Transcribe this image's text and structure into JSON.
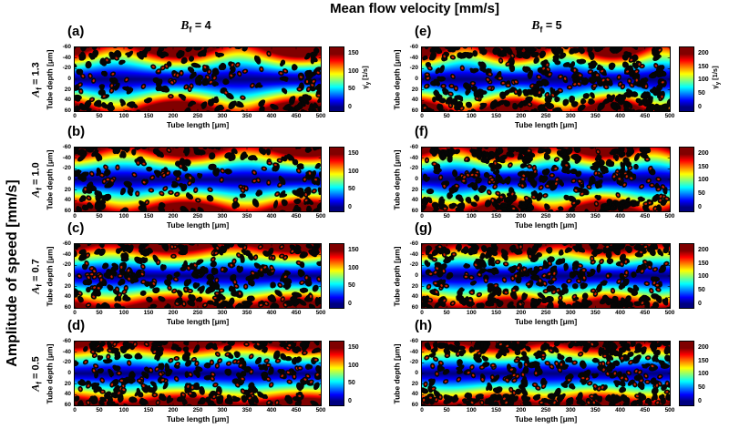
{
  "title": "Mean flow velocity [mm/s]",
  "left_axis_title": "Amplitude of speed [mm/s]",
  "column_headers": [
    {
      "var": "B",
      "sub": "f",
      "eq": " = 4"
    },
    {
      "var": "B",
      "sub": "f",
      "eq": " = 5"
    }
  ],
  "row_labels": [
    {
      "var": "A",
      "sub": "f",
      "eq": " = 1.3"
    },
    {
      "var": "A",
      "sub": "f",
      "eq": " = 1.0"
    },
    {
      "var": "A",
      "sub": "f",
      "eq": " = 0.7"
    },
    {
      "var": "A",
      "sub": "f",
      "eq": " = 0.5"
    }
  ],
  "axes": {
    "x_label": "Tube length [μm]",
    "y_label": "Tube depth [μm]",
    "x_ticks": [
      0,
      50,
      100,
      150,
      200,
      250,
      300,
      350,
      400,
      450,
      500
    ],
    "y_ticks": [
      -60,
      -40,
      -20,
      0,
      20,
      40,
      60
    ]
  },
  "colorbar": {
    "sym": "γ̇",
    "sub": "y",
    "unit": " [1/s]"
  },
  "chart_data": {
    "type": "heatmap",
    "title": "Mean flow velocity [mm/s]",
    "x_label": "Tube length [μm]",
    "y_label": "Tube depth [μm]",
    "x_range": [
      0,
      500
    ],
    "y_range": [
      -60,
      60
    ],
    "y_axis_reversed": true,
    "colormap": "jet",
    "colorbar_label": "γ̇y [1/s]",
    "grid": false,
    "legend": "none",
    "description": "Shear rate field in a tube: low (dark blue) along centerline, high (dark red) at walls, modulated along tube length; black red-blood-cell aggregates and red-cored cells overlaid",
    "panels": [
      {
        "letter": "(a)",
        "row": 0,
        "col": 0,
        "A_f": 1.3,
        "B_f": 4,
        "cbar_ticks": [
          0,
          50,
          100,
          150
        ],
        "cbar_label": true,
        "heat": {
          "waves": 2,
          "amp": 0.3,
          "phase": 2.6,
          "exp": 1.25,
          "gain": 1.18
        },
        "particles": {
          "seed": 11,
          "blobs": 175,
          "cells": 55,
          "cluster_prob": 0.72,
          "wall_prob": 0.5,
          "cell_sy": 12,
          "clusters": [
            [
              0.09,
              0.45,
              0.1,
              0.45
            ],
            [
              0.55,
              0.4,
              0.09,
              0.4
            ],
            [
              0.96,
              0.7,
              0.07,
              0.25
            ]
          ]
        }
      },
      {
        "letter": "(b)",
        "row": 1,
        "col": 0,
        "A_f": 1.0,
        "B_f": 4,
        "cbar_ticks": [
          0,
          50,
          100,
          150
        ],
        "cbar_label": false,
        "heat": {
          "waves": 2,
          "amp": 0.24,
          "phase": 2.2,
          "exp": 1.25,
          "gain": 1.18
        },
        "particles": {
          "seed": 22,
          "blobs": 165,
          "cells": 60,
          "cluster_prob": 0.65,
          "wall_prob": 0.45,
          "cell_sy": 13,
          "clusters": [
            [
              0.07,
              0.45,
              0.09,
              0.42
            ],
            [
              0.47,
              0.42,
              0.1,
              0.4
            ],
            [
              0.97,
              0.5,
              0.06,
              0.4
            ]
          ]
        }
      },
      {
        "letter": "(c)",
        "row": 2,
        "col": 0,
        "A_f": 0.7,
        "B_f": 4,
        "cbar_ticks": [
          0,
          50,
          100,
          150
        ],
        "cbar_label": false,
        "heat": {
          "waves": 2,
          "amp": 0.18,
          "phase": 2.9,
          "exp": 1.25,
          "gain": 1.18
        },
        "particles": {
          "seed": 33,
          "blobs": 205,
          "cells": 90,
          "cluster_prob": 0.35,
          "wall_prob": 0.35,
          "cell_sy": 18,
          "clusters": [
            [
              0.15,
              0.5,
              0.12,
              0.45
            ],
            [
              0.55,
              0.5,
              0.12,
              0.45
            ]
          ]
        }
      },
      {
        "letter": "(d)",
        "row": 3,
        "col": 0,
        "A_f": 0.5,
        "B_f": 4,
        "cbar_ticks": [
          0,
          50,
          100,
          150
        ],
        "cbar_label": false,
        "heat": {
          "waves": 2,
          "amp": 0.14,
          "phase": 2.4,
          "exp": 1.25,
          "gain": 1.18
        },
        "particles": {
          "seed": 44,
          "blobs": 215,
          "cells": 95,
          "cluster_prob": 0.25,
          "wall_prob": 0.35,
          "cell_sy": 20,
          "clusters": [
            [
              0.3,
              0.5,
              0.15,
              0.45
            ],
            [
              0.75,
              0.5,
              0.15,
              0.45
            ]
          ]
        }
      },
      {
        "letter": "(e)",
        "row": 0,
        "col": 1,
        "A_f": 1.3,
        "B_f": 5,
        "cbar_ticks": [
          0,
          50,
          100,
          150,
          200
        ],
        "cbar_label": true,
        "heat": {
          "waves": 2.5,
          "amp": 0.3,
          "phase": 2.0,
          "exp": 1.25,
          "gain": 1.18
        },
        "particles": {
          "seed": 55,
          "blobs": 265,
          "cells": 80,
          "cluster_prob": 0.5,
          "wall_prob": 0.45,
          "cell_sy": 13,
          "clusters": [
            [
              0.15,
              0.5,
              0.13,
              0.45
            ],
            [
              0.55,
              0.45,
              0.12,
              0.42
            ],
            [
              0.9,
              0.6,
              0.08,
              0.35
            ]
          ]
        }
      },
      {
        "letter": "(f)",
        "row": 1,
        "col": 1,
        "A_f": 1.0,
        "B_f": 5,
        "cbar_ticks": [
          0,
          50,
          100,
          150,
          200
        ],
        "cbar_label": false,
        "heat": {
          "waves": 2.5,
          "amp": 0.24,
          "phase": 2.7,
          "exp": 1.25,
          "gain": 1.18
        },
        "particles": {
          "seed": 66,
          "blobs": 265,
          "cells": 85,
          "cluster_prob": 0.3,
          "wall_prob": 0.4,
          "cell_sy": 15,
          "clusters": [
            [
              0.25,
              0.5,
              0.15,
              0.45
            ],
            [
              0.7,
              0.5,
              0.15,
              0.45
            ]
          ]
        }
      },
      {
        "letter": "(g)",
        "row": 2,
        "col": 1,
        "A_f": 0.7,
        "B_f": 5,
        "cbar_ticks": [
          0,
          50,
          100,
          150,
          200
        ],
        "cbar_label": false,
        "heat": {
          "waves": 2.5,
          "amp": 0.18,
          "phase": 2.3,
          "exp": 1.25,
          "gain": 1.18
        },
        "particles": {
          "seed": 77,
          "blobs": 255,
          "cells": 90,
          "cluster_prob": 0.22,
          "wall_prob": 0.38,
          "cell_sy": 18,
          "clusters": [
            [
              0.4,
              0.5,
              0.2,
              0.45
            ],
            [
              0.8,
              0.5,
              0.15,
              0.45
            ]
          ]
        }
      },
      {
        "letter": "(h)",
        "row": 3,
        "col": 1,
        "A_f": 0.5,
        "B_f": 5,
        "cbar_ticks": [
          0,
          50,
          100,
          150,
          200
        ],
        "cbar_label": false,
        "heat": {
          "waves": 2.5,
          "amp": 0.14,
          "phase": 3.0,
          "exp": 1.25,
          "gain": 1.18
        },
        "particles": {
          "seed": 88,
          "blobs": 265,
          "cells": 100,
          "cluster_prob": 0.22,
          "wall_prob": 0.4,
          "cell_sy": 20,
          "clusters": [
            [
              0.35,
              0.5,
              0.2,
              0.45
            ],
            [
              0.75,
              0.5,
              0.15,
              0.45
            ]
          ]
        }
      }
    ]
  }
}
